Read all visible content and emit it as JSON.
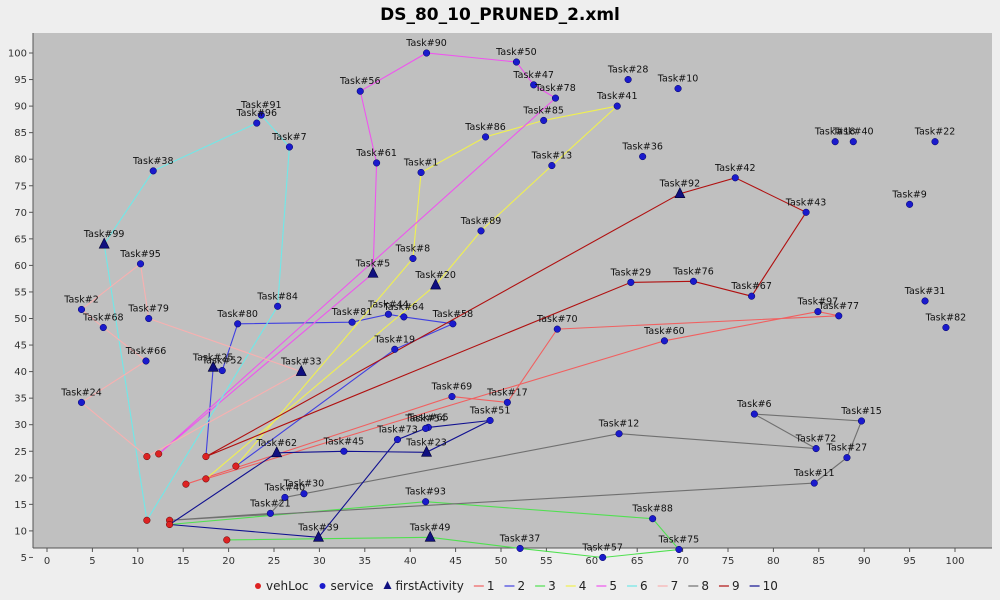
{
  "chart_data": {
    "type": "scatter",
    "title": "DS_80_10_PRUNED_2.xml",
    "xlim": [
      -1,
      102
    ],
    "ylim": [
      0,
      104
    ],
    "x_ticks": [
      0,
      5,
      10,
      15,
      20,
      25,
      30,
      35,
      40,
      45,
      50,
      55,
      60,
      65,
      70,
      75,
      80,
      85,
      90,
      95,
      100
    ],
    "y_ticks": [
      5,
      10,
      15,
      20,
      25,
      30,
      35,
      40,
      45,
      50,
      55,
      60,
      65,
      70,
      75,
      80,
      85,
      90,
      95,
      100
    ],
    "grid": false,
    "background": "#c0c0c0",
    "legend_position": "bottom",
    "legend": [
      {
        "name": "vehLoc",
        "marker": "circle",
        "color": "#dd2222"
      },
      {
        "name": "service",
        "marker": "circle",
        "color": "#1a1acc"
      },
      {
        "name": "firstActivity",
        "marker": "triangle",
        "color": "#101080"
      },
      {
        "name": "1",
        "marker": "line",
        "color": "#f06060"
      },
      {
        "name": "2",
        "marker": "line",
        "color": "#4040e0"
      },
      {
        "name": "3",
        "marker": "line",
        "color": "#50e050"
      },
      {
        "name": "4",
        "marker": "line",
        "color": "#f0f050"
      },
      {
        "name": "5",
        "marker": "line",
        "color": "#ee55ee"
      },
      {
        "name": "6",
        "marker": "line",
        "color": "#70e8e8"
      },
      {
        "name": "7",
        "marker": "line",
        "color": "#f8b0b0"
      },
      {
        "name": "8",
        "marker": "line",
        "color": "#707070"
      },
      {
        "name": "9",
        "marker": "line",
        "color": "#b01010"
      },
      {
        "name": "10",
        "marker": "line",
        "color": "#101090"
      }
    ],
    "vehLoc": [
      [
        17.5,
        24
      ],
      [
        12.3,
        24.5
      ],
      [
        11,
        24
      ],
      [
        17.5,
        19.8
      ],
      [
        15.3,
        18.8
      ],
      [
        20.8,
        22.2
      ],
      [
        11,
        12
      ],
      [
        13.5,
        12
      ],
      [
        13.5,
        11.2
      ],
      [
        19.8,
        8.3
      ]
    ],
    "tasks": [
      {
        "label": "Task#90",
        "x": 41.8,
        "y": 100,
        "kind": "service"
      },
      {
        "label": "Task#50",
        "x": 51.7,
        "y": 98.3,
        "kind": "service"
      },
      {
        "label": "Task#47",
        "x": 53.6,
        "y": 94,
        "kind": "service"
      },
      {
        "label": "Task#78",
        "x": 56,
        "y": 91.5,
        "kind": "service"
      },
      {
        "label": "Task#56",
        "x": 34.5,
        "y": 92.8,
        "kind": "service"
      },
      {
        "label": "Task#28",
        "x": 64,
        "y": 95,
        "kind": "service"
      },
      {
        "label": "Task#10",
        "x": 69.5,
        "y": 93.3,
        "kind": "service"
      },
      {
        "label": "Task#41",
        "x": 62.8,
        "y": 90,
        "kind": "service"
      },
      {
        "label": "Task#85",
        "x": 54.7,
        "y": 87.3,
        "kind": "service"
      },
      {
        "label": "Task#86",
        "x": 48.3,
        "y": 84.2,
        "kind": "service"
      },
      {
        "label": "Task#91",
        "x": 23.6,
        "y": 88.3,
        "kind": "service"
      },
      {
        "label": "Task#96",
        "x": 23.1,
        "y": 86.8,
        "kind": "service"
      },
      {
        "label": "Task#7",
        "x": 26.7,
        "y": 82.3,
        "kind": "service"
      },
      {
        "label": "Task#61",
        "x": 36.3,
        "y": 79.3,
        "kind": "service"
      },
      {
        "label": "Task#1",
        "x": 41.2,
        "y": 77.5,
        "kind": "service"
      },
      {
        "label": "Task#13",
        "x": 55.6,
        "y": 78.8,
        "kind": "service"
      },
      {
        "label": "Task#36",
        "x": 65.6,
        "y": 80.5,
        "kind": "service"
      },
      {
        "label": "Task#18",
        "x": 86.8,
        "y": 83.3,
        "kind": "service"
      },
      {
        "label": "Task#40",
        "x": 88.8,
        "y": 83.3,
        "kind": "service"
      },
      {
        "label": "Task#22",
        "x": 97.8,
        "y": 83.3,
        "kind": "service"
      },
      {
        "label": "Task#38",
        "x": 11.7,
        "y": 77.8,
        "kind": "service"
      },
      {
        "label": "Task#42",
        "x": 75.8,
        "y": 76.5,
        "kind": "service"
      },
      {
        "label": "Task#92",
        "x": 69.7,
        "y": 73.5,
        "kind": "first"
      },
      {
        "label": "Task#43",
        "x": 83.6,
        "y": 70,
        "kind": "service"
      },
      {
        "label": "Task#9",
        "x": 95,
        "y": 71.5,
        "kind": "service"
      },
      {
        "label": "Task#89",
        "x": 47.8,
        "y": 66.5,
        "kind": "service"
      },
      {
        "label": "Task#99",
        "x": 6.3,
        "y": 64,
        "kind": "first"
      },
      {
        "label": "Task#95",
        "x": 10.3,
        "y": 60.3,
        "kind": "service"
      },
      {
        "label": "Task#8",
        "x": 40.3,
        "y": 61.3,
        "kind": "service"
      },
      {
        "label": "Task#5",
        "x": 35.9,
        "y": 58.5,
        "kind": "first"
      },
      {
        "label": "Task#20",
        "x": 42.8,
        "y": 56.3,
        "kind": "first"
      },
      {
        "label": "Task#29",
        "x": 64.3,
        "y": 56.8,
        "kind": "service"
      },
      {
        "label": "Task#76",
        "x": 71.2,
        "y": 57,
        "kind": "service"
      },
      {
        "label": "Task#67",
        "x": 77.6,
        "y": 54.2,
        "kind": "service"
      },
      {
        "label": "Task#31",
        "x": 96.7,
        "y": 53.3,
        "kind": "service"
      },
      {
        "label": "Task#2",
        "x": 3.8,
        "y": 51.7,
        "kind": "service"
      },
      {
        "label": "Task#68",
        "x": 6.2,
        "y": 48.3,
        "kind": "service"
      },
      {
        "label": "Task#79",
        "x": 11.2,
        "y": 50,
        "kind": "service"
      },
      {
        "label": "Task#84",
        "x": 25.4,
        "y": 52.3,
        "kind": "service"
      },
      {
        "label": "Task#97",
        "x": 84.9,
        "y": 51.3,
        "kind": "service"
      },
      {
        "label": "Task#77",
        "x": 87.2,
        "y": 50.5,
        "kind": "service"
      },
      {
        "label": "Task#82",
        "x": 99,
        "y": 48.3,
        "kind": "service"
      },
      {
        "label": "Task#80",
        "x": 21,
        "y": 49,
        "kind": "service"
      },
      {
        "label": "Task#81",
        "x": 33.6,
        "y": 49.3,
        "kind": "service"
      },
      {
        "label": "Task#44",
        "x": 37.6,
        "y": 50.8,
        "kind": "service"
      },
      {
        "label": "Task#64",
        "x": 39.3,
        "y": 50.3,
        "kind": "service"
      },
      {
        "label": "Task#58",
        "x": 44.7,
        "y": 49,
        "kind": "service"
      },
      {
        "label": "Task#70",
        "x": 56.2,
        "y": 48,
        "kind": "service"
      },
      {
        "label": "Task#60",
        "x": 68,
        "y": 45.8,
        "kind": "service"
      },
      {
        "label": "Task#66",
        "x": 10.9,
        "y": 42,
        "kind": "service"
      },
      {
        "label": "Task#19",
        "x": 38.3,
        "y": 44.2,
        "kind": "service"
      },
      {
        "label": "Task#25",
        "x": 18.3,
        "y": 40.8,
        "kind": "first"
      },
      {
        "label": "Task#52",
        "x": 19.3,
        "y": 40.2,
        "kind": "service"
      },
      {
        "label": "Task#33",
        "x": 28,
        "y": 40,
        "kind": "first"
      },
      {
        "label": "Task#24",
        "x": 3.8,
        "y": 34.2,
        "kind": "service"
      },
      {
        "label": "Task#69",
        "x": 44.6,
        "y": 35.3,
        "kind": "service"
      },
      {
        "label": "Task#17",
        "x": 50.7,
        "y": 34.2,
        "kind": "service"
      },
      {
        "label": "Task#6",
        "x": 77.9,
        "y": 32,
        "kind": "service"
      },
      {
        "label": "Task#15",
        "x": 89.7,
        "y": 30.7,
        "kind": "service"
      },
      {
        "label": "Task#51",
        "x": 48.8,
        "y": 30.8,
        "kind": "service"
      },
      {
        "label": "Task#65",
        "x": 42,
        "y": 29.5,
        "kind": "service"
      },
      {
        "label": "Task#54",
        "x": 41.7,
        "y": 29.3,
        "kind": "service"
      },
      {
        "label": "Task#12",
        "x": 63,
        "y": 28.3,
        "kind": "service"
      },
      {
        "label": "Task#73",
        "x": 38.6,
        "y": 27.2,
        "kind": "service"
      },
      {
        "label": "Task#62",
        "x": 25.3,
        "y": 24.7,
        "kind": "first"
      },
      {
        "label": "Task#45",
        "x": 32.7,
        "y": 25,
        "kind": "service"
      },
      {
        "label": "Task#23",
        "x": 41.8,
        "y": 24.8,
        "kind": "first"
      },
      {
        "label": "Task#72",
        "x": 84.7,
        "y": 25.5,
        "kind": "service"
      },
      {
        "label": "Task#27",
        "x": 88.1,
        "y": 23.8,
        "kind": "service"
      },
      {
        "label": "Task#11",
        "x": 84.5,
        "y": 19,
        "kind": "service"
      },
      {
        "label": "Task#30",
        "x": 28.3,
        "y": 17,
        "kind": "service"
      },
      {
        "label": "Task#40",
        "x": 26.2,
        "y": 16.3,
        "kind": "service"
      },
      {
        "label": "Task#93",
        "x": 41.7,
        "y": 15.5,
        "kind": "service"
      },
      {
        "label": "Task#21",
        "x": 24.6,
        "y": 13.3,
        "kind": "service"
      },
      {
        "label": "Task#88",
        "x": 66.7,
        "y": 12.3,
        "kind": "service"
      },
      {
        "label": "Task#39",
        "x": 29.9,
        "y": 8.8,
        "kind": "first"
      },
      {
        "label": "Task#49",
        "x": 42.2,
        "y": 8.8,
        "kind": "first"
      },
      {
        "label": "Task#37",
        "x": 52.1,
        "y": 6.7,
        "kind": "service"
      },
      {
        "label": "Task#75",
        "x": 69.6,
        "y": 6.5,
        "kind": "service"
      },
      {
        "label": "Task#57",
        "x": 61.2,
        "y": 5,
        "kind": "service"
      }
    ],
    "routes": [
      {
        "name": "1",
        "points": [
          [
            15.3,
            18.8
          ],
          [
            44.6,
            35.3
          ],
          [
            50.7,
            34.2
          ],
          [
            56.2,
            48
          ],
          [
            87.2,
            50.5
          ],
          [
            84.9,
            51.3
          ],
          [
            68,
            45.8
          ],
          [
            17.5,
            19.8
          ]
        ]
      },
      {
        "name": "2",
        "points": [
          [
            20.8,
            22.2
          ],
          [
            38.3,
            44.2
          ],
          [
            44.7,
            49
          ],
          [
            39.3,
            50.3
          ],
          [
            37.6,
            50.8
          ],
          [
            33.6,
            49.3
          ],
          [
            21,
            49
          ],
          [
            19.3,
            40.2
          ],
          [
            18.3,
            40.8
          ],
          [
            17.5,
            24
          ]
        ]
      },
      {
        "name": "3",
        "points": [
          [
            19.8,
            8.3
          ],
          [
            42.2,
            8.8
          ],
          [
            52.1,
            6.7
          ],
          [
            61.2,
            5
          ],
          [
            69.6,
            6.5
          ],
          [
            66.7,
            12.3
          ],
          [
            41.7,
            15.5
          ],
          [
            13.5,
            11.2
          ]
        ]
      },
      {
        "name": "4",
        "points": [
          [
            17.5,
            19.8
          ],
          [
            42.8,
            56.3
          ],
          [
            47.8,
            66.5
          ],
          [
            55.6,
            78.8
          ],
          [
            62.8,
            90
          ],
          [
            54.7,
            87.3
          ],
          [
            48.3,
            84.2
          ],
          [
            41.2,
            77.5
          ],
          [
            40.3,
            61.3
          ],
          [
            20.8,
            22.2
          ]
        ]
      },
      {
        "name": "5",
        "points": [
          [
            12.3,
            24.5
          ],
          [
            35.9,
            58.5
          ],
          [
            36.3,
            79.3
          ],
          [
            34.5,
            92.8
          ],
          [
            41.8,
            100
          ],
          [
            51.7,
            98.3
          ],
          [
            53.6,
            94
          ],
          [
            56,
            91.5
          ],
          [
            12.3,
            24.5
          ]
        ]
      },
      {
        "name": "6",
        "points": [
          [
            11,
            12
          ],
          [
            25.4,
            52.3
          ],
          [
            26.7,
            82.3
          ],
          [
            23.6,
            88.3
          ],
          [
            23.1,
            86.8
          ],
          [
            11.7,
            77.8
          ],
          [
            6.3,
            64
          ],
          [
            11,
            12
          ]
        ]
      },
      {
        "name": "7",
        "points": [
          [
            11,
            24
          ],
          [
            3.8,
            34.2
          ],
          [
            10.9,
            42
          ],
          [
            6.2,
            48.3
          ],
          [
            3.8,
            51.7
          ],
          [
            10.3,
            60.3
          ],
          [
            11.2,
            50
          ],
          [
            28,
            40
          ],
          [
            11,
            24
          ]
        ]
      },
      {
        "name": "8",
        "points": [
          [
            13.5,
            12
          ],
          [
            24.6,
            13.3
          ],
          [
            26.2,
            16.3
          ],
          [
            28.3,
            17
          ],
          [
            63,
            28.3
          ],
          [
            84.7,
            25.5
          ],
          [
            77.9,
            32
          ],
          [
            89.7,
            30.7
          ],
          [
            88.1,
            23.8
          ],
          [
            84.5,
            19
          ],
          [
            13.5,
            12
          ]
        ]
      },
      {
        "name": "9",
        "points": [
          [
            17.5,
            24
          ],
          [
            64.3,
            56.8
          ],
          [
            71.2,
            57
          ],
          [
            77.6,
            54.2
          ],
          [
            83.6,
            70
          ],
          [
            75.8,
            76.5
          ],
          [
            69.7,
            73.5
          ],
          [
            17.5,
            24
          ]
        ]
      },
      {
        "name": "10",
        "points": [
          [
            13.5,
            11.2
          ],
          [
            29.9,
            8.8
          ],
          [
            38.6,
            27.2
          ],
          [
            41.7,
            29.3
          ],
          [
            42,
            29.5
          ],
          [
            48.8,
            30.8
          ],
          [
            41.8,
            24.8
          ],
          [
            32.7,
            25
          ],
          [
            25.3,
            24.7
          ],
          [
            13.5,
            11.2
          ]
        ]
      }
    ]
  }
}
